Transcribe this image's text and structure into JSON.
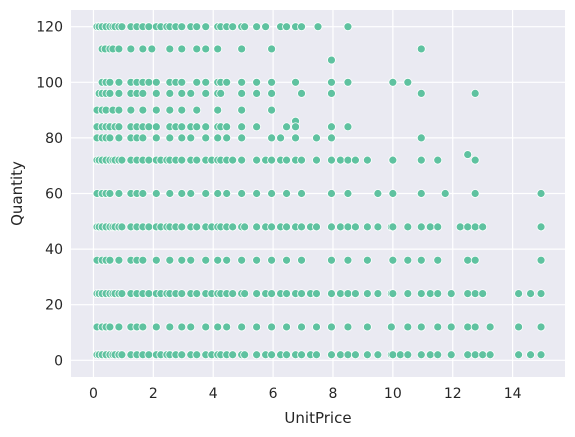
{
  "chart_data": {
    "type": "scatter",
    "xlabel": "UnitPrice",
    "ylabel": "Quantity",
    "xlim": [
      -0.75,
      15.75
    ],
    "ylim": [
      -6,
      126
    ],
    "xticks": [
      0,
      2,
      4,
      6,
      8,
      10,
      12,
      14
    ],
    "yticks": [
      0,
      20,
      40,
      60,
      80,
      100,
      120
    ],
    "grid": true,
    "background": "#EAEAF2",
    "grid_color": "#FFFFFF",
    "marker_color": "#5FC2A0",
    "marker_edge": "#FFFFFF",
    "series": [
      {
        "x": [
          0.12,
          0.19,
          0.29,
          0.42,
          0.55,
          0.65,
          0.72,
          0.85,
          0.95,
          1.25,
          1.45,
          1.65,
          1.85,
          2.1,
          2.25,
          2.45,
          2.55,
          2.75,
          2.95,
          3.25,
          3.45,
          3.75,
          4.15,
          4.25,
          4.45,
          4.65,
          4.95,
          5.05,
          5.45,
          5.75,
          6.25,
          6.45,
          6.75,
          6.95,
          7.5,
          8.5,
          0.29,
          0.39,
          0.55,
          0.65,
          0.85,
          1.25,
          1.65,
          1.95,
          2.55,
          2.95,
          3.45,
          3.75,
          4.15,
          4.95,
          5.95,
          7.95,
          10.95,
          0.29,
          0.42,
          0.55,
          0.85,
          1.25,
          1.45,
          1.65,
          1.85,
          2.1,
          2.55,
          2.75,
          2.95,
          3.45,
          3.75,
          4.15,
          4.25,
          4.45,
          4.95,
          5.45,
          5.95,
          6.75,
          7.95,
          8.5,
          10.0,
          10.5,
          0.19,
          0.29,
          0.42,
          0.55,
          0.85,
          1.25,
          1.45,
          1.65,
          2.1,
          2.55,
          2.95,
          3.25,
          3.75,
          4.15,
          4.25,
          4.95,
          5.45,
          5.95,
          6.95,
          7.95,
          10.95,
          12.75,
          0.12,
          0.29,
          0.42,
          0.65,
          0.85,
          1.25,
          1.65,
          2.1,
          2.55,
          2.95,
          3.45,
          4.15,
          4.95,
          5.95,
          6.75,
          0.12,
          0.29,
          0.42,
          0.55,
          0.72,
          0.85,
          1.25,
          1.45,
          1.65,
          1.85,
          2.1,
          2.55,
          2.75,
          2.95,
          3.25,
          3.45,
          3.75,
          4.15,
          4.25,
          4.45,
          4.95,
          5.45,
          6.45,
          6.75,
          7.95,
          8.5,
          10.95,
          12.5,
          0.12,
          0.29,
          0.42,
          0.55,
          0.85,
          1.25,
          1.45,
          1.65,
          2.1,
          2.55,
          2.95,
          3.25,
          3.75,
          4.15,
          4.45,
          4.95,
          5.95,
          6.25,
          6.75,
          7.45,
          7.95,
          10.0,
          10.95,
          0.12,
          0.19,
          0.29,
          0.42,
          0.55,
          0.65,
          0.72,
          0.85,
          0.95,
          1.25,
          1.45,
          1.65,
          1.85,
          2.1,
          2.25,
          2.45,
          2.55,
          2.75,
          2.95,
          3.25,
          3.45,
          3.75,
          3.95,
          4.15,
          4.25,
          4.45,
          4.65,
          4.95,
          5.45,
          5.75,
          5.95,
          6.25,
          6.45,
          6.75,
          6.95,
          7.45,
          7.95,
          8.25,
          8.5,
          8.75,
          9.15,
          10.0,
          10.95,
          11.5,
          12.75,
          0.12,
          0.29,
          0.42,
          0.55,
          0.85,
          1.25,
          1.45,
          1.65,
          2.1,
          2.55,
          2.95,
          3.25,
          3.75,
          4.15,
          4.45,
          4.95,
          5.45,
          5.95,
          6.45,
          6.95,
          7.95,
          8.5,
          9.5,
          10.0,
          10.95,
          11.75,
          12.75,
          14.95,
          0.12,
          0.19,
          0.29,
          0.42,
          0.55,
          0.65,
          0.72,
          0.85,
          0.95,
          1.25,
          1.45,
          1.65,
          1.85,
          2.1,
          2.25,
          2.45,
          2.55,
          2.75,
          2.95,
          3.25,
          3.45,
          3.75,
          3.95,
          4.15,
          4.25,
          4.45,
          4.65,
          4.95,
          5.05,
          5.45,
          5.75,
          5.95,
          6.25,
          6.45,
          6.75,
          6.95,
          7.25,
          7.45,
          7.95,
          8.25,
          8.5,
          8.75,
          9.15,
          9.5,
          9.95,
          10.0,
          10.5,
          10.95,
          11.25,
          11.5,
          12.25,
          12.5,
          12.75,
          13.0,
          14.95,
          0.12,
          0.29,
          0.42,
          0.55,
          0.85,
          1.25,
          1.45,
          1.65,
          2.1,
          2.55,
          2.95,
          3.25,
          3.75,
          4.15,
          4.45,
          4.95,
          5.45,
          5.95,
          6.45,
          6.95,
          7.95,
          8.5,
          9.15,
          10.0,
          10.5,
          10.95,
          11.5,
          12.5,
          12.75,
          14.95,
          0.12,
          0.19,
          0.29,
          0.42,
          0.55,
          0.65,
          0.72,
          0.85,
          0.95,
          1.25,
          1.45,
          1.65,
          1.85,
          2.1,
          2.25,
          2.45,
          2.55,
          2.75,
          2.95,
          3.25,
          3.45,
          3.75,
          3.95,
          4.15,
          4.25,
          4.45,
          4.65,
          4.95,
          5.05,
          5.45,
          5.75,
          5.95,
          6.25,
          6.45,
          6.75,
          6.95,
          7.25,
          7.45,
          7.95,
          8.25,
          8.5,
          8.75,
          9.15,
          9.5,
          9.95,
          10.0,
          10.5,
          10.95,
          11.25,
          11.5,
          11.95,
          12.5,
          12.75,
          13.0,
          14.2,
          14.6,
          14.95,
          0.12,
          0.29,
          0.42,
          0.55,
          0.85,
          1.25,
          1.45,
          1.65,
          2.1,
          2.55,
          2.95,
          3.25,
          3.75,
          4.15,
          4.45,
          4.95,
          5.45,
          5.95,
          6.45,
          6.95,
          7.45,
          7.95,
          8.5,
          9.15,
          9.95,
          10.5,
          10.95,
          11.5,
          11.95,
          12.5,
          12.75,
          13.25,
          14.2,
          14.95,
          0.12,
          0.19,
          0.29,
          0.42,
          0.55,
          0.65,
          0.72,
          0.85,
          0.95,
          1.25,
          1.45,
          1.65,
          1.85,
          2.1,
          2.25,
          2.45,
          2.55,
          2.75,
          2.95,
          3.25,
          3.45,
          3.75,
          3.95,
          4.15,
          4.25,
          4.45,
          4.65,
          4.95,
          5.05,
          5.45,
          5.75,
          5.95,
          6.25,
          6.45,
          6.75,
          6.95,
          7.25,
          7.45,
          7.95,
          8.25,
          8.5,
          8.75,
          9.15,
          9.5,
          9.95,
          10.0,
          10.25,
          10.5,
          10.95,
          11.25,
          11.5,
          11.95,
          12.5,
          12.75,
          13.0,
          13.25,
          14.2,
          14.6,
          14.95
        ],
        "y": [
          120,
          120,
          120,
          120,
          120,
          120,
          120,
          120,
          120,
          120,
          120,
          120,
          120,
          120,
          120,
          120,
          120,
          120,
          120,
          120,
          120,
          120,
          120,
          120,
          120,
          120,
          120,
          120,
          120,
          120,
          120,
          120,
          120,
          120,
          120,
          120,
          112,
          112,
          112,
          112,
          112,
          112,
          112,
          112,
          112,
          112,
          112,
          112,
          112,
          112,
          112,
          108,
          112,
          100,
          100,
          100,
          100,
          100,
          100,
          100,
          100,
          100,
          100,
          100,
          100,
          100,
          100,
          100,
          100,
          100,
          100,
          100,
          100,
          100,
          100,
          100,
          100,
          100,
          96,
          96,
          96,
          96,
          96,
          96,
          96,
          96,
          96,
          96,
          96,
          96,
          96,
          96,
          96,
          96,
          96,
          96,
          96,
          96,
          96,
          96,
          90,
          90,
          90,
          90,
          90,
          90,
          90,
          90,
          90,
          90,
          90,
          90,
          90,
          90,
          86,
          84,
          84,
          84,
          84,
          84,
          84,
          84,
          84,
          84,
          84,
          84,
          84,
          84,
          84,
          84,
          84,
          84,
          84,
          84,
          84,
          84,
          84,
          84,
          84,
          84,
          84,
          80,
          74,
          80,
          80,
          80,
          80,
          80,
          80,
          80,
          80,
          80,
          80,
          80,
          80,
          80,
          80,
          80,
          80,
          80,
          80,
          80,
          80,
          80,
          72,
          72,
          72,
          72,
          72,
          72,
          72,
          72,
          72,
          72,
          72,
          72,
          72,
          72,
          72,
          72,
          72,
          72,
          72,
          72,
          72,
          72,
          72,
          72,
          72,
          72,
          72,
          72,
          72,
          72,
          72,
          72,
          72,
          72,
          72,
          72,
          72,
          72,
          72,
          72,
          72,
          72,
          72,
          72,
          72,
          72,
          72,
          60,
          60,
          60,
          60,
          60,
          60,
          60,
          60,
          60,
          60,
          60,
          60,
          60,
          60,
          60,
          60,
          60,
          60,
          60,
          60,
          60,
          60,
          60,
          60,
          60,
          60,
          60,
          60,
          48,
          48,
          48,
          48,
          48,
          48,
          48,
          48,
          48,
          48,
          48,
          48,
          48,
          48,
          48,
          48,
          48,
          48,
          48,
          48,
          48,
          48,
          48,
          48,
          48,
          48,
          48,
          48,
          48,
          48,
          48,
          48,
          48,
          48,
          48,
          48,
          48,
          48,
          48,
          48,
          48,
          48,
          48,
          48,
          48,
          48,
          48,
          48,
          48,
          48,
          48,
          48,
          48,
          48,
          48,
          36,
          36,
          36,
          36,
          36,
          36,
          36,
          36,
          36,
          36,
          36,
          36,
          36,
          36,
          36,
          36,
          36,
          36,
          36,
          36,
          36,
          36,
          36,
          36,
          36,
          36,
          36,
          36,
          36,
          36,
          24,
          24,
          24,
          24,
          24,
          24,
          24,
          24,
          24,
          24,
          24,
          24,
          24,
          24,
          24,
          24,
          24,
          24,
          24,
          24,
          24,
          24,
          24,
          24,
          24,
          24,
          24,
          24,
          24,
          24,
          24,
          24,
          24,
          24,
          24,
          24,
          24,
          24,
          24,
          24,
          24,
          24,
          24,
          24,
          24,
          24,
          24,
          24,
          24,
          24,
          24,
          24,
          24,
          24,
          24,
          24,
          24,
          12,
          12,
          12,
          12,
          12,
          12,
          12,
          12,
          12,
          12,
          12,
          12,
          12,
          12,
          12,
          12,
          12,
          12,
          12,
          12,
          12,
          12,
          12,
          12,
          12,
          12,
          12,
          12,
          12,
          12,
          12,
          12,
          12,
          12,
          2,
          2,
          2,
          2,
          2,
          2,
          2,
          2,
          2,
          2,
          2,
          2,
          2,
          2,
          2,
          2,
          2,
          2,
          2,
          2,
          2,
          2,
          2,
          2,
          2,
          2,
          2,
          2,
          2,
          2,
          2,
          2,
          2,
          2,
          2,
          2,
          2,
          2,
          2,
          2,
          2,
          2,
          2,
          2,
          2,
          2,
          2,
          2,
          2,
          2,
          2,
          2,
          2,
          2,
          2,
          2,
          2,
          2,
          2
        ]
      }
    ]
  }
}
